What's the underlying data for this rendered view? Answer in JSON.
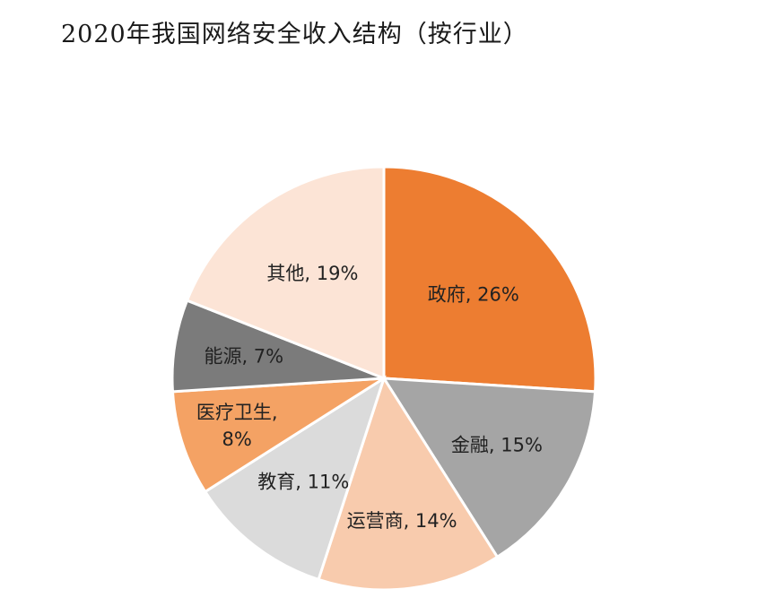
{
  "chart_data": {
    "type": "pie",
    "title": "2020年我国网络安全收入结构（按行业）",
    "legend": "none",
    "slices": [
      {
        "category": "政府",
        "value": 26,
        "label_lines": [
          "政府, 26%"
        ],
        "color": "#ED7D31"
      },
      {
        "category": "金融",
        "value": 15,
        "label_lines": [
          "金融, 15%"
        ],
        "color": "#A5A5A5"
      },
      {
        "category": "运营商",
        "value": 14,
        "label_lines": [
          "运营商, 14%"
        ],
        "color": "#F8CBAD"
      },
      {
        "category": "教育",
        "value": 11,
        "label_lines": [
          "教育, 11%"
        ],
        "color": "#DBDBDB"
      },
      {
        "category": "医疗卫生",
        "value": 8,
        "label_lines": [
          "医疗卫生,",
          "8%"
        ],
        "color": "#F4A264"
      },
      {
        "category": "能源",
        "value": 7,
        "label_lines": [
          "能源, 7%"
        ],
        "color": "#7B7B7B"
      },
      {
        "category": "其他",
        "value": 19,
        "label_lines": [
          "其他, 19%"
        ],
        "color": "#FCE4D6"
      }
    ]
  }
}
